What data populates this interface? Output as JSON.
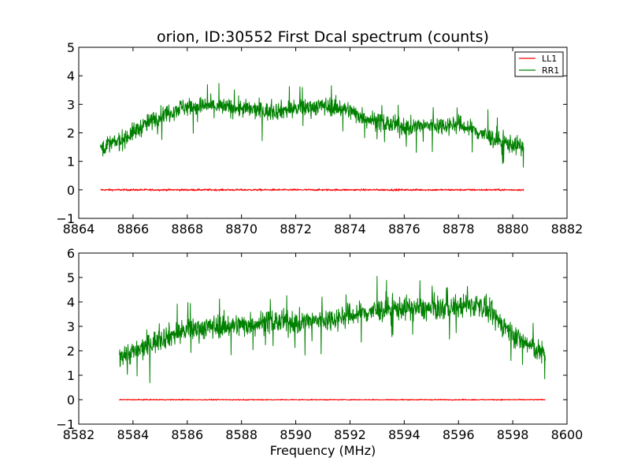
{
  "chart_data": [
    {
      "type": "line",
      "title": "orion, ID:30552 First Dcal spectrum (counts)",
      "xlabel": "",
      "ylabel": "",
      "xlim": [
        8864,
        8882
      ],
      "ylim": [
        -1,
        5
      ],
      "x_ticks": [
        "8864",
        "8866",
        "8868",
        "8870",
        "8872",
        "8874",
        "8876",
        "8878",
        "8880",
        "8882"
      ],
      "y_ticks": [
        "−1",
        "0",
        "1",
        "2",
        "3",
        "4",
        "5"
      ],
      "legend": {
        "position": "top-right",
        "entries": [
          "LL1",
          "RR1"
        ]
      },
      "series": [
        {
          "name": "LL1",
          "color": "#ff0000",
          "x_range": [
            8864.8,
            8880.4
          ],
          "envelope": {
            "x": [
              8864.8,
              8880.4
            ],
            "y": [
              0.0,
              0.0
            ]
          },
          "noise": 0.03
        },
        {
          "name": "RR1",
          "color": "#008000",
          "x_range": [
            8864.8,
            8880.4
          ],
          "envelope": {
            "x": [
              8864.8,
              8865.5,
              8866.3,
              8867.0,
              8867.8,
              8868.8,
              8870.0,
              8871.0,
              8872.0,
              8873.0,
              8873.8,
              8874.5,
              8875.2,
              8876.0,
              8877.0,
              8878.0,
              8878.8,
              8879.5,
              8880.4
            ],
            "y": [
              1.5,
              1.7,
              2.2,
              2.6,
              2.9,
              2.95,
              2.85,
              2.75,
              2.85,
              2.95,
              2.85,
              2.55,
              2.35,
              2.2,
              2.25,
              2.3,
              2.0,
              1.7,
              1.5
            ]
          },
          "noise": 0.3
        }
      ]
    },
    {
      "type": "line",
      "title": "",
      "xlabel": "Frequency (MHz)",
      "ylabel": "",
      "xlim": [
        8582,
        8600
      ],
      "ylim": [
        -1,
        6
      ],
      "x_ticks": [
        "8582",
        "8584",
        "8586",
        "8588",
        "8590",
        "8592",
        "8594",
        "8596",
        "8598",
        "8600"
      ],
      "y_ticks": [
        "−1",
        "0",
        "1",
        "2",
        "3",
        "4",
        "5",
        "6"
      ],
      "series": [
        {
          "name": "LL1",
          "color": "#ff0000",
          "x_range": [
            8583.5,
            8599.2
          ],
          "envelope": {
            "x": [
              8583.5,
              8599.2
            ],
            "y": [
              0.0,
              0.0
            ]
          },
          "noise": 0.02
        },
        {
          "name": "RR1",
          "color": "#008000",
          "x_range": [
            8583.5,
            8599.2
          ],
          "envelope": {
            "x": [
              8583.5,
              8584.2,
              8585.0,
              8586.0,
              8587.0,
              8588.0,
              8589.0,
              8590.0,
              8591.0,
              8592.0,
              8593.0,
              8594.0,
              8595.0,
              8596.0,
              8596.8,
              8597.5,
              8598.2,
              8598.8,
              8599.2
            ],
            "y": [
              1.8,
              2.0,
              2.5,
              2.85,
              3.0,
              3.05,
              3.2,
              3.15,
              3.25,
              3.45,
              3.65,
              3.75,
              3.7,
              3.8,
              3.9,
              3.2,
              2.5,
              2.1,
              1.8
            ]
          },
          "noise": 0.45
        }
      ]
    }
  ]
}
